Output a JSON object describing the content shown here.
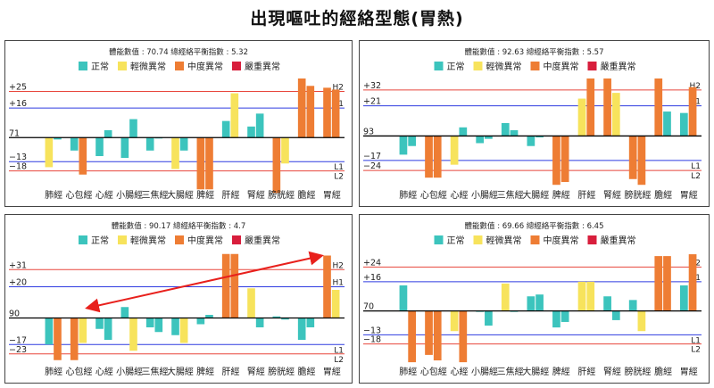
{
  "page": {
    "title": "出現嘔吐的經絡型態(胃熱)"
  },
  "legend": [
    {
      "name": "正常",
      "color": "#3cc4bd"
    },
    {
      "name": "輕微異常",
      "color": "#f7e35c"
    },
    {
      "name": "中度異常",
      "color": "#ee7d34"
    },
    {
      "name": "嚴重異常",
      "color": "#d81e3c"
    }
  ],
  "colors": {
    "upper_line": "#e8463c",
    "lower_line": "#2f3be0",
    "baseline": "#000000",
    "arrow": "#e8201c"
  },
  "chart_data": [
    {
      "type": "bar",
      "stats": "體能數值 : 70.74  總經絡平衡指數 : 5.32",
      "categories": [
        "肺經",
        "心包經",
        "心經",
        "小腸經",
        "三焦經",
        "大腸經",
        "脾經",
        "肝經",
        "腎經",
        "膀胱經",
        "膽經",
        "胃經"
      ],
      "baseline": 71,
      "baseline_label": "71",
      "ticks": [
        {
          "label": "+25",
          "value": 25,
          "line": "H2"
        },
        {
          "label": "+16",
          "value": 16,
          "line": "H1"
        },
        {
          "label": "−13",
          "value": -13,
          "line": "L1"
        },
        {
          "label": "−18",
          "value": -18,
          "line": "L2"
        }
      ],
      "ylim": [
        -24,
        32
      ],
      "series": [
        {
          "category": "肺經",
          "pairs": [
            [
              -16,
              "yellow"
            ],
            [
              -1,
              "teal"
            ]
          ]
        },
        {
          "category": "心包經",
          "pairs": [
            [
              -7,
              "teal"
            ],
            [
              -20,
              "orange"
            ]
          ]
        },
        {
          "category": "心經",
          "pairs": [
            [
              -10,
              "teal"
            ],
            [
              4,
              "teal"
            ]
          ]
        },
        {
          "category": "小腸經",
          "pairs": [
            [
              -11,
              "teal"
            ],
            [
              10,
              "teal"
            ]
          ]
        },
        {
          "category": "三焦經",
          "pairs": [
            [
              -7,
              "teal"
            ],
            [
              0,
              "teal"
            ]
          ]
        },
        {
          "category": "大腸經",
          "pairs": [
            [
              -17,
              "yellow"
            ],
            [
              -7,
              "teal"
            ]
          ]
        },
        {
          "category": "脾經",
          "pairs": [
            [
              -28,
              "orange"
            ],
            [
              -28,
              "orange"
            ]
          ]
        },
        {
          "category": "肝經",
          "pairs": [
            [
              9,
              "teal"
            ],
            [
              24,
              "yellow"
            ]
          ]
        },
        {
          "category": "腎經",
          "pairs": [
            [
              6,
              "teal"
            ],
            [
              13,
              "teal"
            ]
          ]
        },
        {
          "category": "膀胱經",
          "pairs": [
            [
              -30,
              "orange"
            ],
            [
              -14,
              "yellow"
            ]
          ]
        },
        {
          "category": "膽經",
          "pairs": [
            [
              32,
              "orange"
            ],
            [
              28,
              "orange"
            ]
          ]
        },
        {
          "category": "胃經",
          "pairs": [
            [
              27,
              "orange"
            ],
            [
              26,
              "orange"
            ]
          ]
        }
      ],
      "arrow": false
    },
    {
      "type": "bar",
      "stats": "體能數值 : 92.63  總經絡平衡指數 : 5.57",
      "categories": [
        "肺經",
        "心包經",
        "心經",
        "小腸經",
        "三焦經",
        "大腸經",
        "脾經",
        "肝經",
        "腎經",
        "膀胱經",
        "膽經",
        "胃經"
      ],
      "baseline": 93,
      "baseline_label": "93",
      "ticks": [
        {
          "label": "+32",
          "value": 32,
          "line": "H2"
        },
        {
          "label": "+21",
          "value": 21,
          "line": "H1"
        },
        {
          "label": "−17",
          "value": -17,
          "line": "L1"
        },
        {
          "label": "−24",
          "value": -24,
          "line": "L2"
        }
      ],
      "ylim": [
        -32,
        40
      ],
      "series": [
        {
          "category": "肺經",
          "pairs": [
            [
              -13,
              "teal"
            ],
            [
              -7,
              "teal"
            ]
          ]
        },
        {
          "category": "心包經",
          "pairs": [
            [
              -29,
              "orange"
            ],
            [
              -29,
              "orange"
            ]
          ]
        },
        {
          "category": "心經",
          "pairs": [
            [
              -20,
              "yellow"
            ],
            [
              6,
              "teal"
            ]
          ]
        },
        {
          "category": "小腸經",
          "pairs": [
            [
              -5,
              "teal"
            ],
            [
              -2,
              "teal"
            ]
          ]
        },
        {
          "category": "三焦經",
          "pairs": [
            [
              9,
              "teal"
            ],
            [
              4,
              "teal"
            ]
          ]
        },
        {
          "category": "大腸經",
          "pairs": [
            [
              -7,
              "teal"
            ],
            [
              -1,
              "teal"
            ]
          ]
        },
        {
          "category": "脾經",
          "pairs": [
            [
              -34,
              "orange"
            ],
            [
              -32,
              "orange"
            ]
          ]
        },
        {
          "category": "肝經",
          "pairs": [
            [
              26,
              "yellow"
            ],
            [
              40,
              "orange"
            ]
          ]
        },
        {
          "category": "腎經",
          "pairs": [
            [
              40,
              "orange"
            ],
            [
              30,
              "yellow"
            ]
          ]
        },
        {
          "category": "膀胱經",
          "pairs": [
            [
              -30,
              "orange"
            ],
            [
              -34,
              "orange"
            ]
          ]
        },
        {
          "category": "膽經",
          "pairs": [
            [
              40,
              "orange"
            ],
            [
              17,
              "teal"
            ]
          ]
        },
        {
          "category": "胃經",
          "pairs": [
            [
              16,
              "teal"
            ],
            [
              34,
              "orange"
            ]
          ]
        }
      ],
      "arrow": false
    },
    {
      "type": "bar",
      "stats": "體能數值 : 90.17  總經絡平衡指數 : 4.7",
      "categories": [
        "肺經",
        "心包經",
        "心經",
        "小腸經",
        "三焦經",
        "大腸經",
        "脾經",
        "肝經",
        "腎經",
        "膀胱經",
        "膽經",
        "胃經"
      ],
      "baseline": 90,
      "baseline_label": "90",
      "ticks": [
        {
          "label": "+31",
          "value": 31,
          "line": "H2"
        },
        {
          "label": "+20",
          "value": 20,
          "line": "H1"
        },
        {
          "label": "−17",
          "value": -17,
          "line": "L1"
        },
        {
          "label": "−23",
          "value": -23,
          "line": "L2"
        }
      ],
      "ylim": [
        -26,
        42
      ],
      "series": [
        {
          "category": "肺經",
          "pairs": [
            [
              -17,
              "teal"
            ],
            [
              -27,
              "orange"
            ]
          ]
        },
        {
          "category": "心包經",
          "pairs": [
            [
              -27,
              "orange"
            ],
            [
              -16,
              "yellow"
            ]
          ]
        },
        {
          "category": "心經",
          "pairs": [
            [
              -7,
              "teal"
            ],
            [
              -14,
              "teal"
            ]
          ]
        },
        {
          "category": "小腸經",
          "pairs": [
            [
              7,
              "teal"
            ],
            [
              -21,
              "yellow"
            ]
          ]
        },
        {
          "category": "三焦經",
          "pairs": [
            [
              -6,
              "teal"
            ],
            [
              -9,
              "teal"
            ]
          ]
        },
        {
          "category": "大腸經",
          "pairs": [
            [
              -11,
              "teal"
            ],
            [
              -16,
              "yellow"
            ]
          ]
        },
        {
          "category": "脾經",
          "pairs": [
            [
              -4,
              "teal"
            ],
            [
              2,
              "teal"
            ]
          ]
        },
        {
          "category": "肝經",
          "pairs": [
            [
              41,
              "orange"
            ],
            [
              41,
              "orange"
            ]
          ]
        },
        {
          "category": "腎經",
          "pairs": [
            [
              19,
              "yellow"
            ],
            [
              -6,
              "teal"
            ]
          ]
        },
        {
          "category": "膀胱經",
          "pairs": [
            [
              1,
              "teal"
            ],
            [
              -1,
              "teal"
            ]
          ]
        },
        {
          "category": "膽經",
          "pairs": [
            [
              -14,
              "teal"
            ],
            [
              -6,
              "teal"
            ]
          ]
        },
        {
          "category": "胃經",
          "pairs": [
            [
              40,
              "orange"
            ],
            [
              18,
              "yellow"
            ]
          ]
        }
      ],
      "arrow": true
    },
    {
      "type": "bar",
      "stats": "體能數值 : 69.66  總經絡平衡指數 : 6.45",
      "categories": [
        "肺經",
        "心包經",
        "心經",
        "小腸經",
        "三焦經",
        "大腸經",
        "脾經",
        "肝經",
        "腎經",
        "膀胱經",
        "膽經",
        "胃經"
      ],
      "baseline": 70,
      "baseline_label": "70",
      "ticks": [
        {
          "label": "+24",
          "value": 24,
          "line": "H2"
        },
        {
          "label": "+16",
          "value": 16,
          "line": "H1"
        },
        {
          "label": "−13",
          "value": -13,
          "line": "L1"
        },
        {
          "label": "−18",
          "value": -18,
          "line": "L2"
        }
      ],
      "ylim": [
        -26,
        32
      ],
      "series": [
        {
          "category": "肺經",
          "pairs": [
            [
              14,
              "teal"
            ],
            [
              -28,
              "orange"
            ]
          ]
        },
        {
          "category": "心包經",
          "pairs": [
            [
              -24,
              "orange"
            ],
            [
              -27,
              "orange"
            ]
          ]
        },
        {
          "category": "心經",
          "pairs": [
            [
              -11,
              "yellow"
            ],
            [
              -28,
              "orange"
            ]
          ]
        },
        {
          "category": "小腸經",
          "pairs": [
            [
              0,
              "teal"
            ],
            [
              -8,
              "teal"
            ]
          ]
        },
        {
          "category": "三焦經",
          "pairs": [
            [
              15,
              "yellow"
            ],
            [
              0,
              "teal"
            ]
          ]
        },
        {
          "category": "大腸經",
          "pairs": [
            [
              8,
              "teal"
            ],
            [
              9,
              "teal"
            ]
          ]
        },
        {
          "category": "脾經",
          "pairs": [
            [
              -9,
              "teal"
            ],
            [
              -6,
              "teal"
            ]
          ]
        },
        {
          "category": "肝經",
          "pairs": [
            [
              16,
              "yellow"
            ],
            [
              16,
              "yellow"
            ]
          ]
        },
        {
          "category": "腎經",
          "pairs": [
            [
              8,
              "teal"
            ],
            [
              -5,
              "teal"
            ]
          ]
        },
        {
          "category": "膀胱經",
          "pairs": [
            [
              6,
              "teal"
            ],
            [
              -11,
              "yellow"
            ]
          ]
        },
        {
          "category": "膽經",
          "pairs": [
            [
              30,
              "orange"
            ],
            [
              30,
              "orange"
            ]
          ]
        },
        {
          "category": "胃經",
          "pairs": [
            [
              14,
              "teal"
            ],
            [
              31,
              "orange"
            ]
          ]
        }
      ],
      "arrow": false
    }
  ]
}
